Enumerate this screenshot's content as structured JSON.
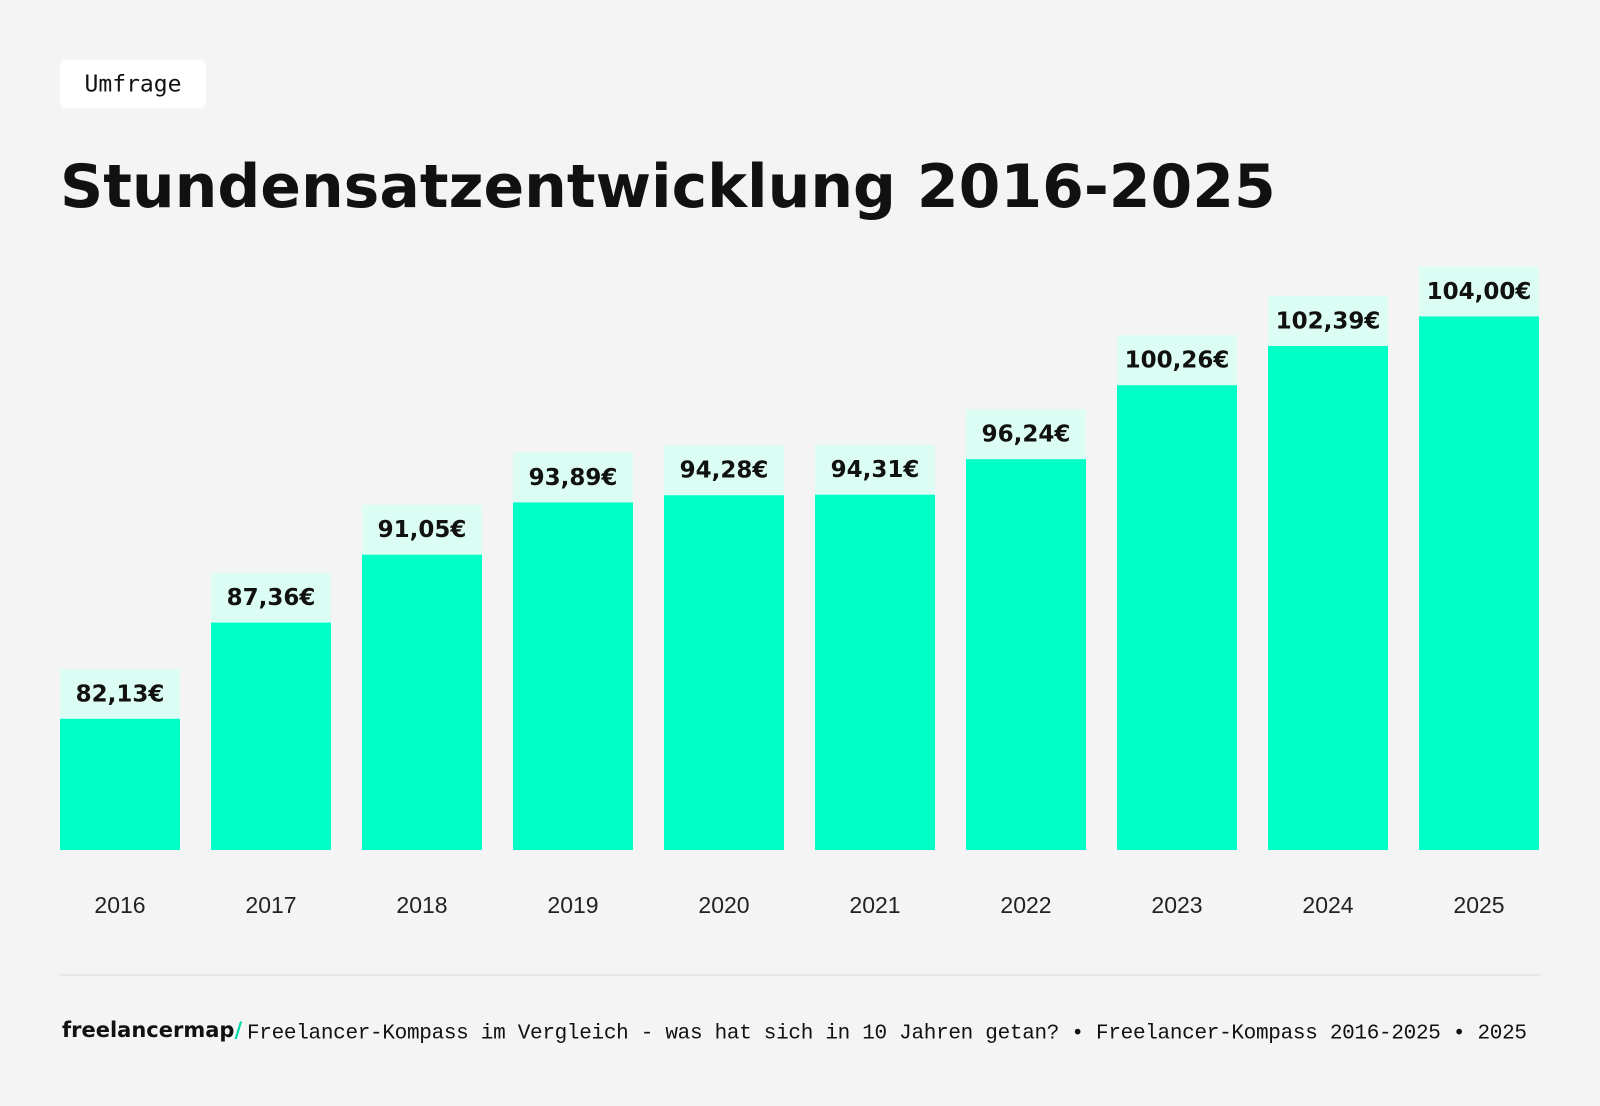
{
  "tag": "Umfrage",
  "chart_data": {
    "type": "bar",
    "title": "Stundensatzentwicklung 2016-2025",
    "categories": [
      "2016",
      "2017",
      "2018",
      "2019",
      "2020",
      "2021",
      "2022",
      "2023",
      "2024",
      "2025"
    ],
    "values": [
      82.13,
      87.36,
      91.05,
      93.89,
      94.28,
      94.31,
      96.24,
      100.26,
      102.39,
      104.0
    ],
    "value_labels": [
      "82,13€",
      "87,36€",
      "91,05€",
      "93,89€",
      "94,28€",
      "94,31€",
      "96,24€",
      "100,26€",
      "102,39€",
      "104,00€"
    ],
    "color": "#00ffc6",
    "ylim": [
      75,
      105
    ]
  },
  "footer": {
    "logo": "freelancermap/",
    "text": "Freelancer-Kompass im Vergleich - was hat sich in 10 Jahren getan? • Freelancer-Kompass 2016-2025 • 2025"
  }
}
